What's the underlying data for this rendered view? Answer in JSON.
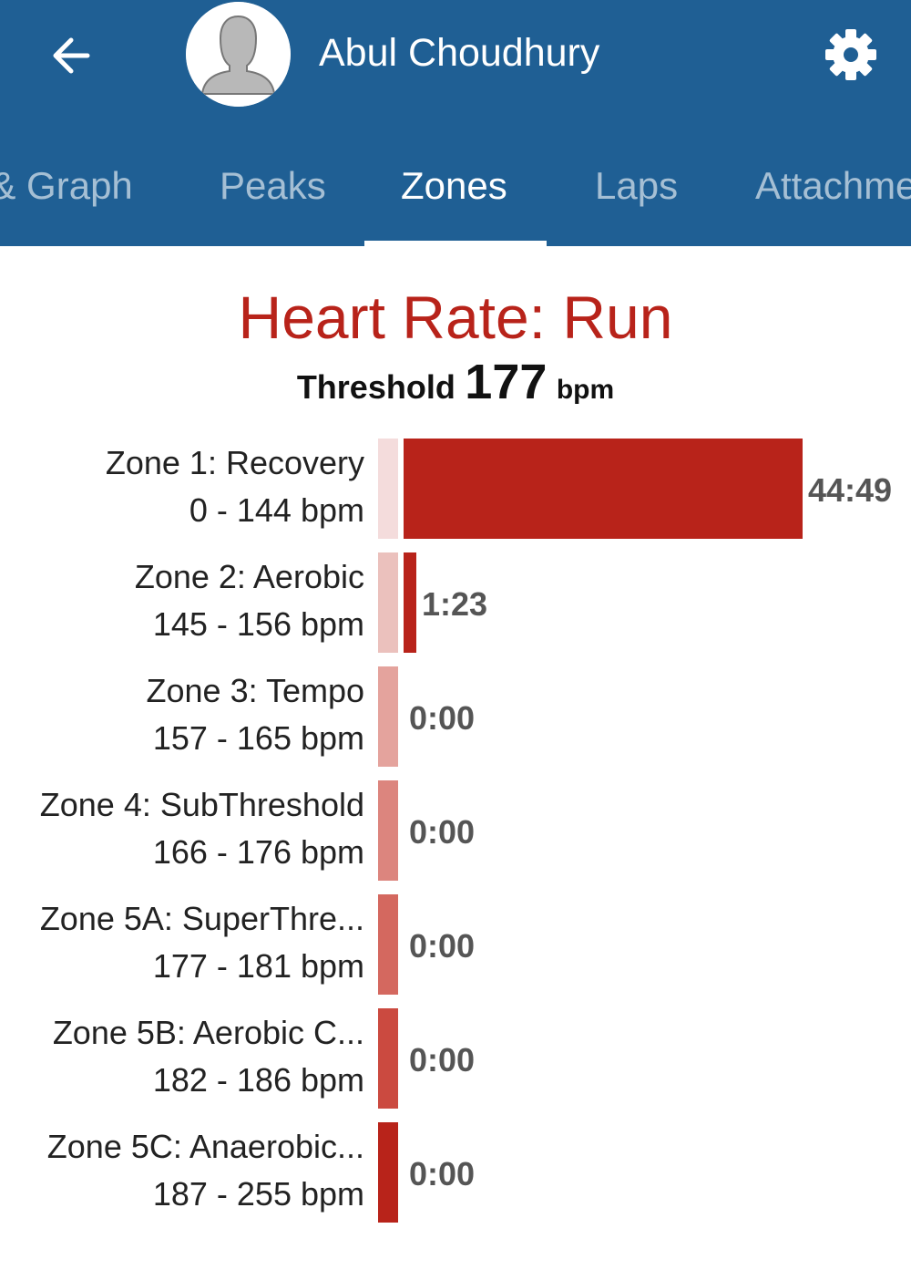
{
  "header": {
    "user_name": "Abul Choudhury",
    "icons": {
      "back": "arrow-left-icon",
      "avatar": "person-silhouette-icon",
      "settings": "gear-icon"
    },
    "background": "#1f5f94"
  },
  "tabs": [
    {
      "label": "Map & Graph",
      "active": false
    },
    {
      "label": "Peaks",
      "active": false
    },
    {
      "label": "Zones",
      "active": true
    },
    {
      "label": "Laps",
      "active": false
    },
    {
      "label": "Attachments",
      "active": false
    }
  ],
  "chart_data": {
    "type": "bar",
    "orientation": "horizontal",
    "title": "Heart Rate: Run",
    "threshold": {
      "label": "Threshold",
      "value": 177,
      "unit": "bpm"
    },
    "categories": [
      "Zone 1: Recovery",
      "Zone 2: Aerobic",
      "Zone 3: Tempo",
      "Zone 4: SubThreshold",
      "Zone 5A: SuperThre...",
      "Zone 5B: Aerobic C...",
      "Zone 5C: Anaerobic..."
    ],
    "ranges": [
      "0 - 144 bpm",
      "145 - 156 bpm",
      "157 - 165 bpm",
      "166 - 176 bpm",
      "177 - 181 bpm",
      "182 - 186 bpm",
      "187 - 255 bpm"
    ],
    "value_labels": [
      "44:49",
      "1:23",
      "0:00",
      "0:00",
      "0:00",
      "0:00",
      "0:00"
    ],
    "values_seconds": [
      2689,
      83,
      0,
      0,
      0,
      0,
      0
    ],
    "swatch_colors": [
      "#f4dcdc",
      "#ebc1bd",
      "#e4a39d",
      "#dc857e",
      "#d4685f",
      "#cb4a40",
      "#b8231a"
    ],
    "bar_color": "#b8231a",
    "title_color": "#b8231a"
  }
}
